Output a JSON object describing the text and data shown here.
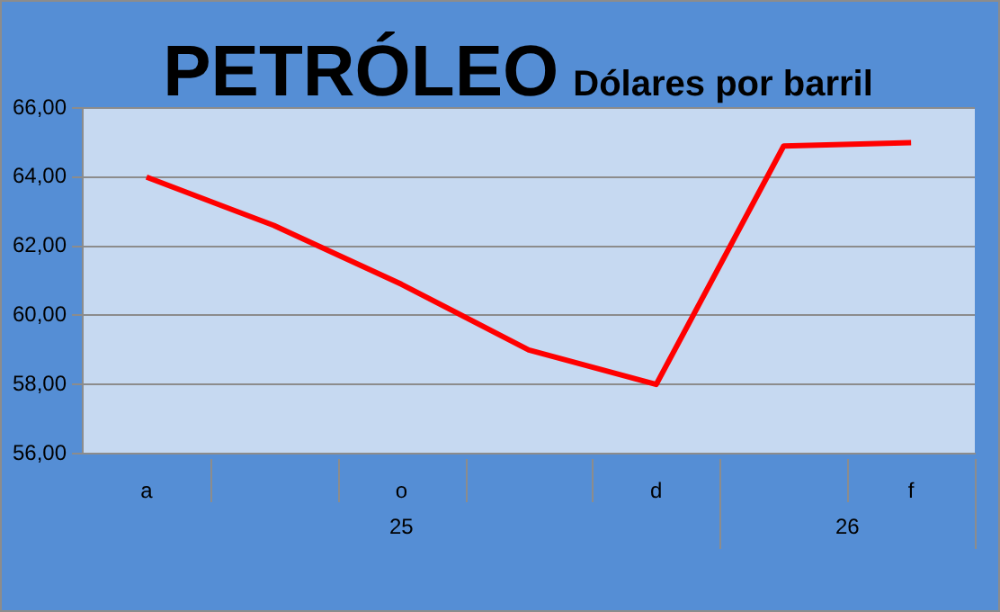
{
  "chart_data": {
    "type": "line",
    "title": "PETRÓLEO",
    "subtitle": "Dólares por barril",
    "categories": [
      "a",
      null,
      "o",
      null,
      "d",
      null,
      "f"
    ],
    "series": [
      {
        "color": "#ff0000",
        "values": [
          64.0,
          62.6,
          60.9,
          59.0,
          58.0,
          64.9,
          65.0
        ]
      }
    ],
    "ylim": [
      56,
      66
    ],
    "yticks": [
      {
        "value": 56,
        "label": "56,00"
      },
      {
        "value": 58,
        "label": "58,00"
      },
      {
        "value": 60,
        "label": "60,00"
      },
      {
        "value": 62,
        "label": "62,00"
      },
      {
        "value": 64,
        "label": "64,00"
      },
      {
        "value": 66,
        "label": "66,00"
      }
    ],
    "annotations": [
      "25",
      "26"
    ],
    "grid": "y",
    "legend": false,
    "marker": "none",
    "line_style": "solid"
  }
}
